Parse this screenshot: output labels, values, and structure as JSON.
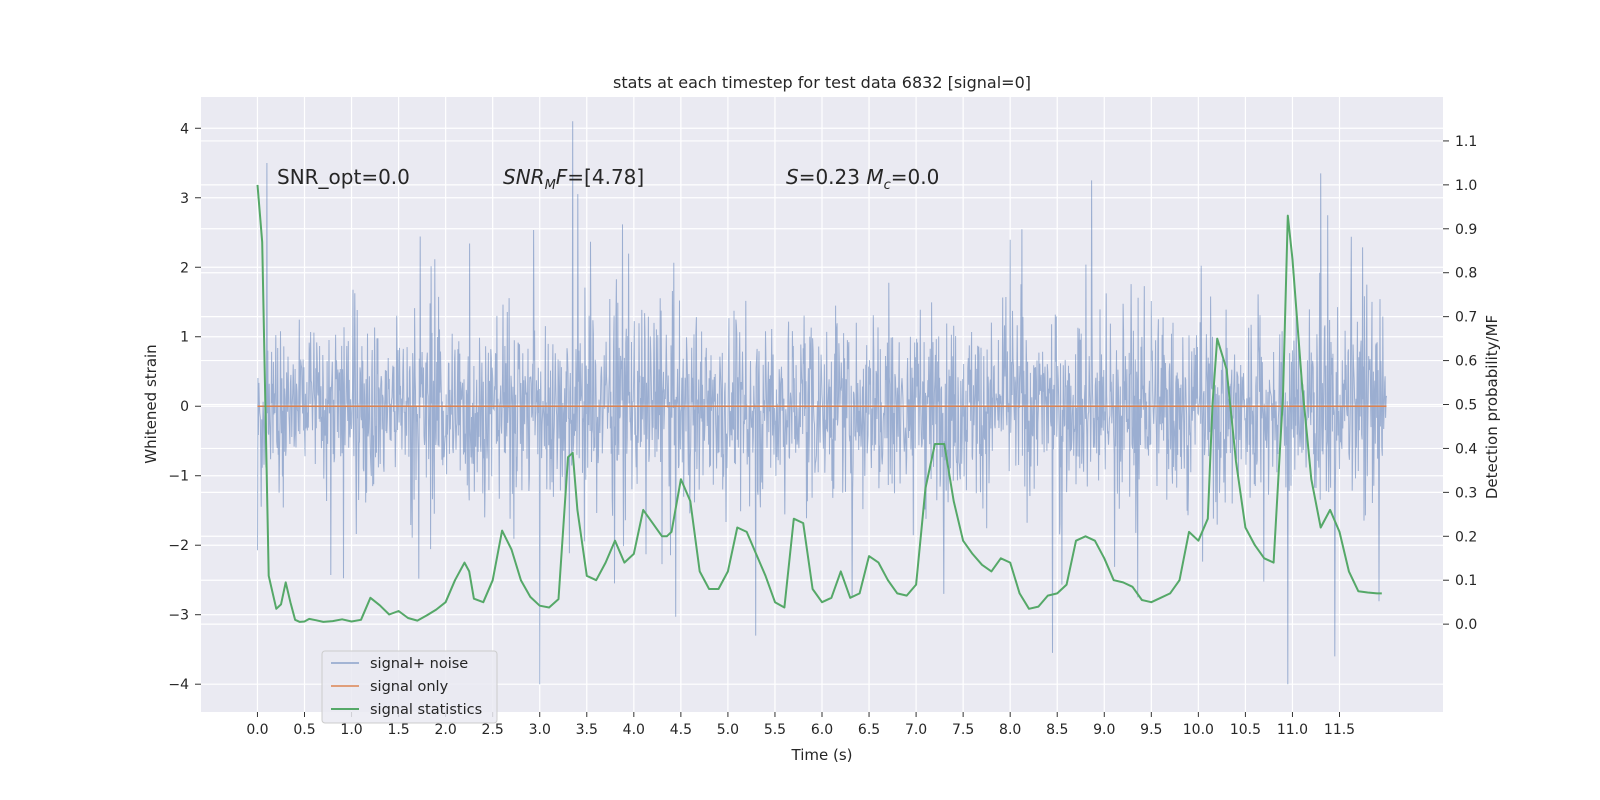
{
  "chart_data": {
    "type": "line",
    "title": "stats at each timestep for test data 6832 [signal=0]",
    "xlabel": "Time (s)",
    "ylabel": "Whitened strain",
    "ylabel_right": "Detection probability/MF",
    "xlim": [
      -0.6,
      12.6
    ],
    "ylim": [
      -4.4,
      4.45
    ],
    "ylim_right": [
      -0.2,
      1.2
    ],
    "x_ticks": [
      0.0,
      0.5,
      1.0,
      1.5,
      2.0,
      2.5,
      3.0,
      3.5,
      4.0,
      4.5,
      5.0,
      5.5,
      6.0,
      6.5,
      7.0,
      7.5,
      8.0,
      8.5,
      9.0,
      9.5,
      10.0,
      10.5,
      11.0,
      11.5
    ],
    "x_tick_labels": [
      "0.0",
      "0.5",
      "1.0",
      "1.5",
      "2.0",
      "2.5",
      "3.0",
      "3.5",
      "4.0",
      "4.5",
      "5.0",
      "5.5",
      "6.0",
      "6.5",
      "7.0",
      "7.5",
      "8.0",
      "8.5",
      "9.0",
      "9.5",
      "10.0",
      "10.5",
      "11.0",
      "11.5"
    ],
    "y_ticks": [
      -4,
      -3,
      -2,
      -1,
      0,
      1,
      2,
      3,
      4
    ],
    "y_tick_labels": [
      "−4",
      "−3",
      "−2",
      "−1",
      "0",
      "1",
      "2",
      "3",
      "4"
    ],
    "y_ticks_right": [
      0.0,
      0.1,
      0.2,
      0.3,
      0.4,
      0.5,
      0.6,
      0.7,
      0.8,
      0.9,
      1.0,
      1.1
    ],
    "y_tick_labels_right": [
      "0.0",
      "0.1",
      "0.2",
      "0.3",
      "0.4",
      "0.5",
      "0.6",
      "0.7",
      "0.8",
      "0.9",
      "1.0",
      "1.1"
    ],
    "grid": true,
    "legend_position": "bottom-left",
    "annotations": [
      "SNR_opt=0.0",
      "SNR_MF=[4.78]",
      "S=0.23   M_c=0.0"
    ],
    "series": [
      {
        "name": "signal+ noise",
        "color": "#4c72b0",
        "note": "dense whitened noise trace, roughly ±1.3 with spikes",
        "x_range": [
          0.0,
          12.0
        ],
        "extremes": [
          {
            "x": 3.35,
            "y": 4.1
          },
          {
            "x": 3.0,
            "y": -4.0
          },
          {
            "x": 10.95,
            "y": -4.0
          },
          {
            "x": 8.45,
            "y": -3.55
          },
          {
            "x": 11.45,
            "y": -3.6
          },
          {
            "x": 0.1,
            "y": 3.5
          },
          {
            "x": 11.3,
            "y": 3.35
          }
        ]
      },
      {
        "name": "signal only",
        "color": "#dd8452",
        "x": [
          0.0,
          12.0
        ],
        "y": [
          0.0,
          0.0
        ]
      },
      {
        "name": "signal statistics",
        "color": "#55a868",
        "x": [
          0.0,
          0.05,
          0.12,
          0.2,
          0.25,
          0.3,
          0.35,
          0.4,
          0.45,
          0.5,
          0.55,
          0.62,
          0.7,
          0.8,
          0.9,
          1.0,
          1.1,
          1.2,
          1.3,
          1.4,
          1.5,
          1.6,
          1.7,
          1.8,
          1.9,
          2.0,
          2.1,
          2.2,
          2.25,
          2.3,
          2.4,
          2.5,
          2.6,
          2.7,
          2.8,
          2.9,
          3.0,
          3.1,
          3.2,
          3.3,
          3.35,
          3.4,
          3.5,
          3.6,
          3.7,
          3.8,
          3.9,
          4.0,
          4.1,
          4.2,
          4.3,
          4.35,
          4.4,
          4.5,
          4.6,
          4.7,
          4.8,
          4.9,
          5.0,
          5.1,
          5.2,
          5.3,
          5.4,
          5.5,
          5.6,
          5.7,
          5.8,
          5.9,
          6.0,
          6.1,
          6.2,
          6.3,
          6.4,
          6.5,
          6.6,
          6.7,
          6.8,
          6.9,
          7.0,
          7.1,
          7.2,
          7.3,
          7.4,
          7.5,
          7.6,
          7.7,
          7.8,
          7.9,
          8.0,
          8.1,
          8.2,
          8.3,
          8.4,
          8.5,
          8.6,
          8.7,
          8.8,
          8.9,
          9.0,
          9.1,
          9.2,
          9.3,
          9.4,
          9.5,
          9.6,
          9.7,
          9.8,
          9.9,
          10.0,
          10.1,
          10.15,
          10.2,
          10.3,
          10.4,
          10.5,
          10.6,
          10.7,
          10.8,
          10.9,
          10.95,
          11.0,
          11.1,
          11.2,
          11.3,
          11.4,
          11.5,
          11.6,
          11.7,
          11.8,
          11.9,
          11.95
        ],
        "y": [
          1.0,
          0.87,
          0.11,
          0.035,
          0.045,
          0.095,
          0.05,
          0.01,
          0.005,
          0.006,
          0.012,
          0.009,
          0.005,
          0.007,
          0.011,
          0.006,
          0.01,
          0.06,
          0.043,
          0.022,
          0.03,
          0.014,
          0.008,
          0.02,
          0.033,
          0.05,
          0.1,
          0.14,
          0.12,
          0.058,
          0.05,
          0.1,
          0.213,
          0.17,
          0.1,
          0.062,
          0.042,
          0.038,
          0.057,
          0.38,
          0.39,
          0.26,
          0.11,
          0.1,
          0.14,
          0.19,
          0.14,
          0.16,
          0.26,
          0.23,
          0.2,
          0.2,
          0.21,
          0.33,
          0.28,
          0.12,
          0.08,
          0.08,
          0.12,
          0.22,
          0.21,
          0.16,
          0.11,
          0.05,
          0.038,
          0.24,
          0.23,
          0.08,
          0.05,
          0.06,
          0.12,
          0.06,
          0.07,
          0.155,
          0.14,
          0.1,
          0.07,
          0.065,
          0.09,
          0.31,
          0.41,
          0.41,
          0.28,
          0.19,
          0.16,
          0.135,
          0.12,
          0.15,
          0.14,
          0.07,
          0.035,
          0.04,
          0.065,
          0.07,
          0.09,
          0.19,
          0.2,
          0.19,
          0.15,
          0.1,
          0.095,
          0.085,
          0.055,
          0.05,
          0.06,
          0.07,
          0.1,
          0.21,
          0.19,
          0.24,
          0.5,
          0.65,
          0.58,
          0.37,
          0.22,
          0.18,
          0.15,
          0.14,
          0.52,
          0.93,
          0.83,
          0.55,
          0.33,
          0.22,
          0.26,
          0.21,
          0.12,
          0.075,
          0.072,
          0.07,
          0.07
        ]
      }
    ]
  }
}
